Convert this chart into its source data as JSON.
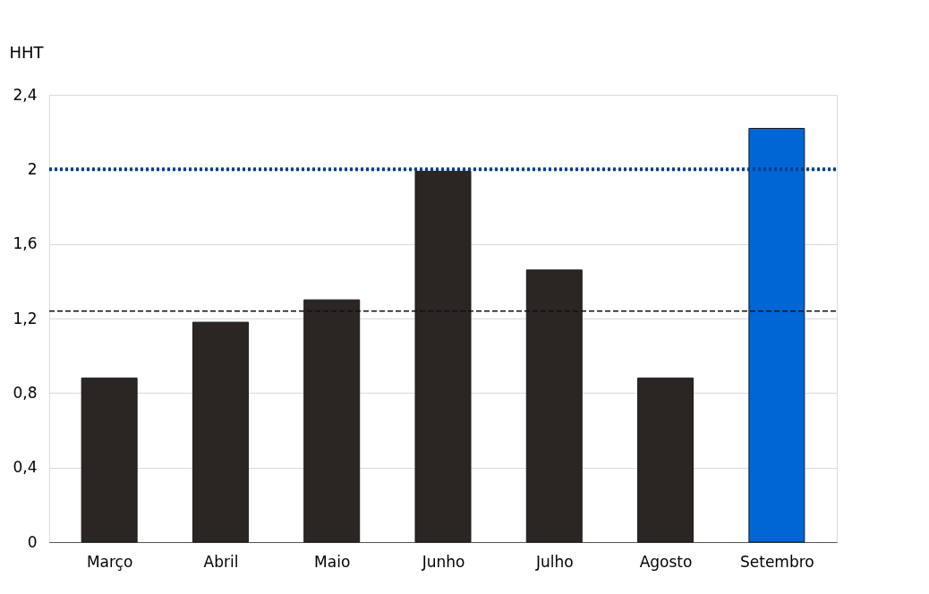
{
  "chart_data": {
    "type": "bar",
    "ylabel": "HHT",
    "categories": [
      "Março",
      "Abril",
      "Maio",
      "Junho",
      "Julho",
      "Agosto",
      "Setembro"
    ],
    "values": [
      0.88,
      1.18,
      1.3,
      1.99,
      1.46,
      0.88,
      2.22
    ],
    "colors": [
      "#2b2523",
      "#2b2523",
      "#2b2523",
      "#2b2523",
      "#2b2523",
      "#2b2523",
      "#0066d6"
    ],
    "ylim": [
      0,
      2.4
    ],
    "yticks": [
      {
        "value": 0,
        "label": "0"
      },
      {
        "value": 0.4,
        "label": "0,4"
      },
      {
        "value": 0.8,
        "label": "0,8"
      },
      {
        "value": 1.2,
        "label": "1,2"
      },
      {
        "value": 1.6,
        "label": "1,6"
      },
      {
        "value": 2,
        "label": "2"
      },
      {
        "value": 2.4,
        "label": "2,4"
      }
    ],
    "grid": "y",
    "ref_lines": [
      {
        "axis": "y",
        "value": 2,
        "color": "#003f8a",
        "line_style": "dotted"
      },
      {
        "axis": "y",
        "value": 1.24,
        "color": "#111111",
        "line_style": "dashed"
      }
    ]
  }
}
